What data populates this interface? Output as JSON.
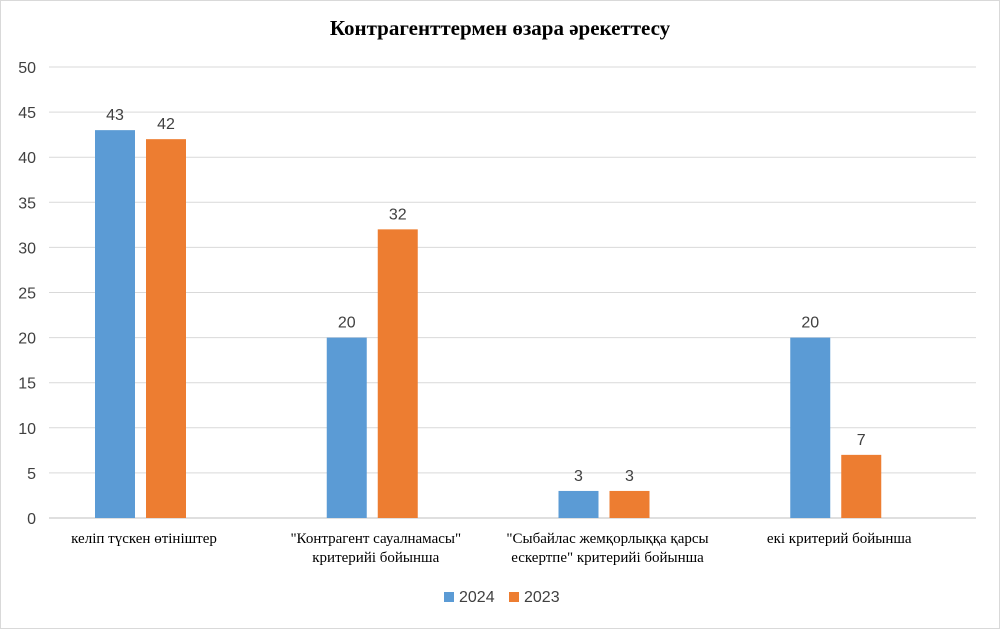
{
  "chart_data": {
    "type": "bar",
    "title": "Контрагенттермен өзара әрекеттесу",
    "categories": [
      [
        "келіп түскен өтініштер"
      ],
      [
        "\"Контрагент  сауалнамасы\"",
        "критерийі  бойынша"
      ],
      [
        "\"Сыбайлас  жемқорлыққа қарсы",
        "ескертпе\" критерийі  бойынша"
      ],
      [
        "екі критерий  бойынша"
      ]
    ],
    "series": [
      {
        "name": "2024",
        "color": "#5b9bd5",
        "values": [
          43,
          20,
          3,
          20
        ]
      },
      {
        "name": "2023",
        "color": "#ed7d31",
        "values": [
          42,
          32,
          3,
          7
        ]
      }
    ],
    "yticks": [
      "0",
      "5",
      "10",
      "15",
      "20",
      "25",
      "30",
      "35",
      "40",
      "45",
      "50"
    ],
    "ylim": [
      0,
      50
    ],
    "grid": true,
    "legend": "bottom-center"
  }
}
